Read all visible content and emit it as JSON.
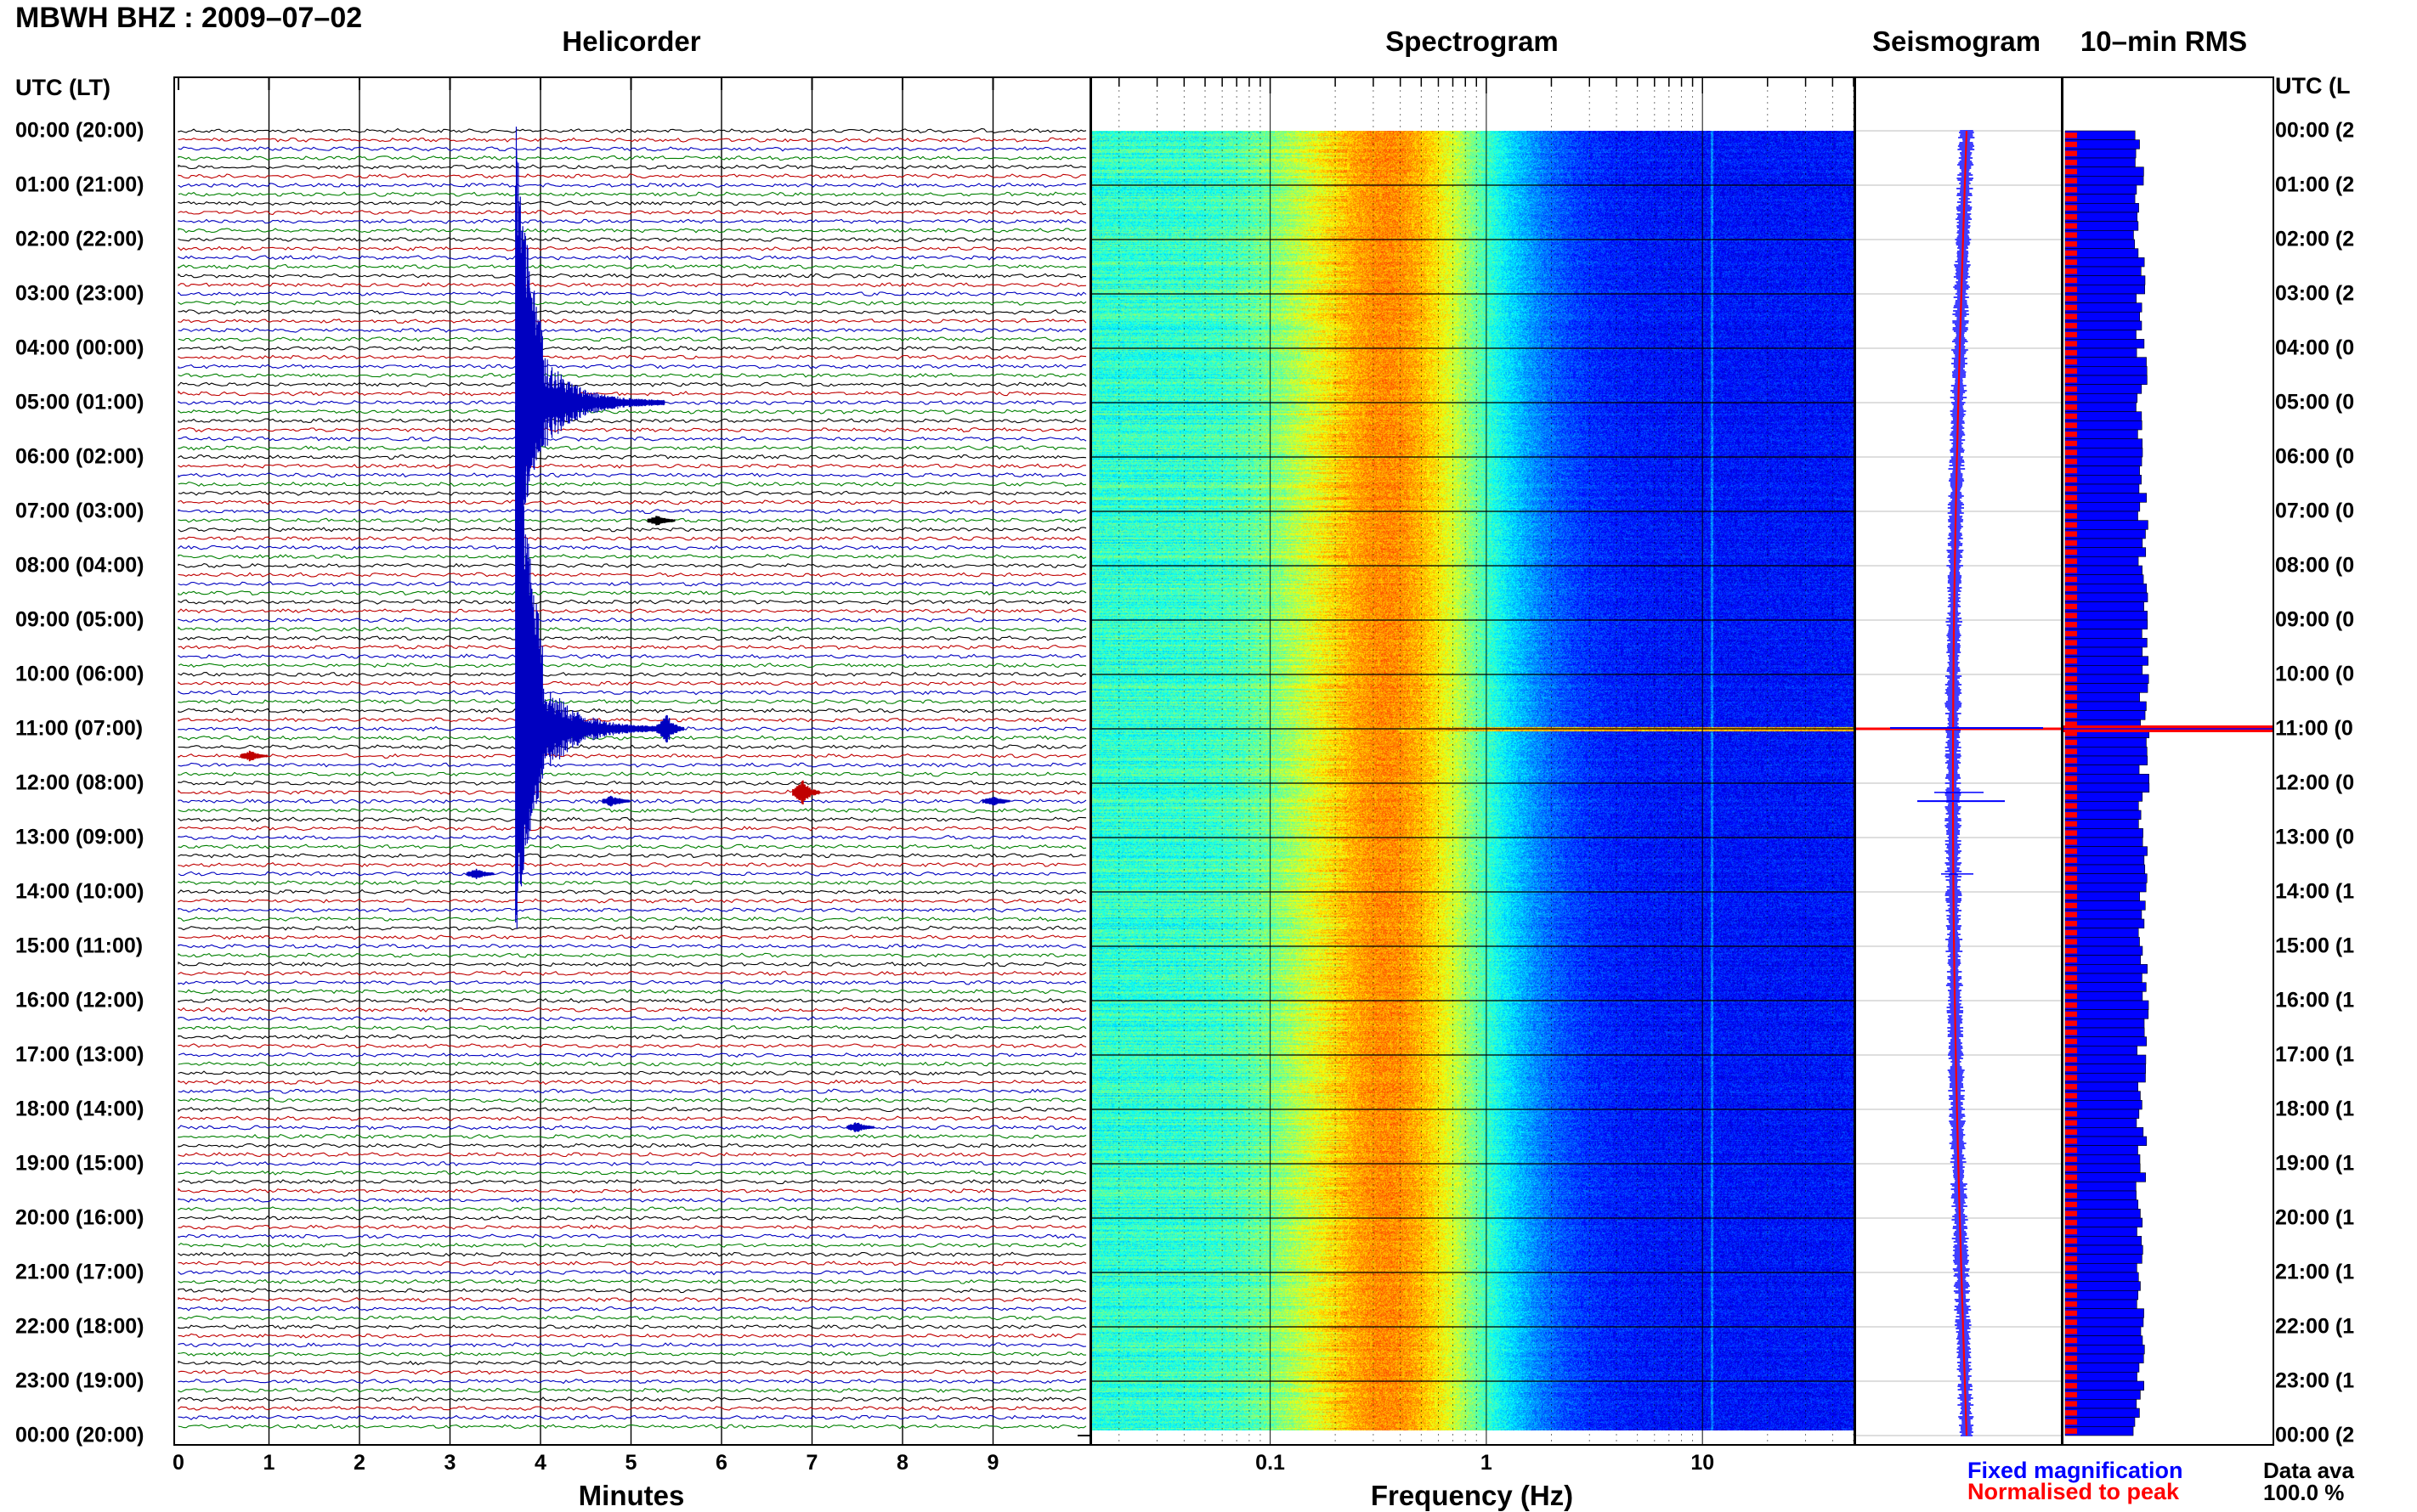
{
  "header": {
    "station_date": "MBWH BHZ : 2009–07–02"
  },
  "panels": {
    "helicorder_title": "Helicorder",
    "spectrogram_title": "Spectrogram",
    "seismogram_title": "Seismogram",
    "rms_title": "10–min RMS"
  },
  "axes": {
    "left_header": "UTC (LT)",
    "right_header": "UTC (L",
    "helicorder_xlabel": "Minutes",
    "spectrogram_xlabel": "Frequency (Hz)"
  },
  "legend": {
    "fixed": "Fixed magnification",
    "normalised": "Normalised to peak",
    "fixed_color": "#0000ff",
    "normalised_color": "#ff0000",
    "data_avail_label": "Data ava",
    "data_avail_value": "100.0 %"
  },
  "chart_data": [
    {
      "type": "line",
      "title": "Helicorder",
      "xlabel": "Minutes",
      "xlim": [
        0,
        10
      ],
      "x_ticks": [
        "0",
        "1",
        "2",
        "3",
        "4",
        "5",
        "6",
        "7",
        "8",
        "9"
      ],
      "rows_per_hour": 6,
      "trace_colors": [
        "#000000",
        "#c00000",
        "#0000c0",
        "#008000"
      ],
      "y_ticks_left": [
        "00:00 (20:00)",
        "01:00 (21:00)",
        "02:00 (22:00)",
        "03:00 (23:00)",
        "04:00 (00:00)",
        "05:00 (01:00)",
        "06:00 (02:00)",
        "07:00 (03:00)",
        "08:00 (04:00)",
        "09:00 (05:00)",
        "10:00 (06:00)",
        "11:00 (07:00)",
        "12:00 (08:00)",
        "13:00 (09:00)",
        "14:00 (10:00)",
        "15:00 (11:00)",
        "16:00 (12:00)",
        "17:00 (13:00)",
        "18:00 (14:00)",
        "19:00 (15:00)",
        "20:00 (16:00)",
        "21:00 (17:00)",
        "22:00 (18:00)",
        "23:00 (19:00)",
        "00:00 (20:00)"
      ],
      "y_ticks_right": [
        "00:00 (2",
        "01:00 (2",
        "02:00 (2",
        "03:00 (2",
        "04:00 (0",
        "05:00 (0",
        "06:00 (0",
        "07:00 (0",
        "08:00 (0",
        "09:00 (0",
        "10:00 (0",
        "11:00 (0",
        "12:00 (0",
        "13:00 (0",
        "14:00 (1",
        "15:00 (1",
        "16:00 (1",
        "17:00 (1",
        "18:00 (1",
        "19:00 (1",
        "20:00 (1",
        "21:00 (1",
        "22:00 (1",
        "23:00 (1",
        "00:00 (2"
      ],
      "events": [
        {
          "hour": 5.0,
          "minute": 3.8,
          "color": "#0000c0",
          "amplitude": 0.8
        },
        {
          "hour": 7.17,
          "minute": 5.3,
          "color": "#000000",
          "amplitude": 0.1
        },
        {
          "hour": 11.0,
          "minute": 3.8,
          "color": "#0000c0",
          "amplitude": 1.0
        },
        {
          "hour": 11.0,
          "minute": 5.4,
          "color": "#0000c0",
          "amplitude": 0.3
        },
        {
          "hour": 11.5,
          "minute": 0.8,
          "color": "#c00000",
          "amplitude": 0.1
        },
        {
          "hour": 12.17,
          "minute": 6.9,
          "color": "#c00000",
          "amplitude": 0.25
        },
        {
          "hour": 12.33,
          "minute": 4.8,
          "color": "#0000c0",
          "amplitude": 0.12
        },
        {
          "hour": 12.33,
          "minute": 9.0,
          "color": "#0000c0",
          "amplitude": 0.1
        },
        {
          "hour": 13.67,
          "minute": 3.3,
          "color": "#0000c0",
          "amplitude": 0.1
        },
        {
          "hour": 18.33,
          "minute": 7.5,
          "color": "#0000c0",
          "amplitude": 0.1
        }
      ]
    },
    {
      "type": "heatmap",
      "title": "Spectrogram",
      "xlabel": "Frequency (Hz)",
      "x_scale": "log",
      "xlim": [
        0.015,
        50
      ],
      "x_ticks": [
        0.1,
        1,
        10
      ],
      "x_tick_labels": [
        "0.1",
        "1",
        "10"
      ],
      "peak_band_hz": [
        0.2,
        0.6
      ],
      "noise_floor_from_hz": 3,
      "spectral_line_hz": 11,
      "event_hour": 11.0
    },
    {
      "type": "line",
      "title": "Seismogram",
      "series": [
        {
          "name": "Fixed magnification",
          "color": "#0000ff"
        },
        {
          "name": "Normalised to peak",
          "color": "#ff0000"
        }
      ],
      "event_hours": [
        11.0,
        12.17,
        12.33,
        13.67
      ]
    },
    {
      "type": "bar",
      "title": "10–min RMS",
      "series": [
        {
          "name": "Fixed magnification",
          "color": "#0000ff"
        },
        {
          "name": "Normalised to peak",
          "color": "#ff0000"
        }
      ],
      "event_hour": 11.0
    }
  ]
}
